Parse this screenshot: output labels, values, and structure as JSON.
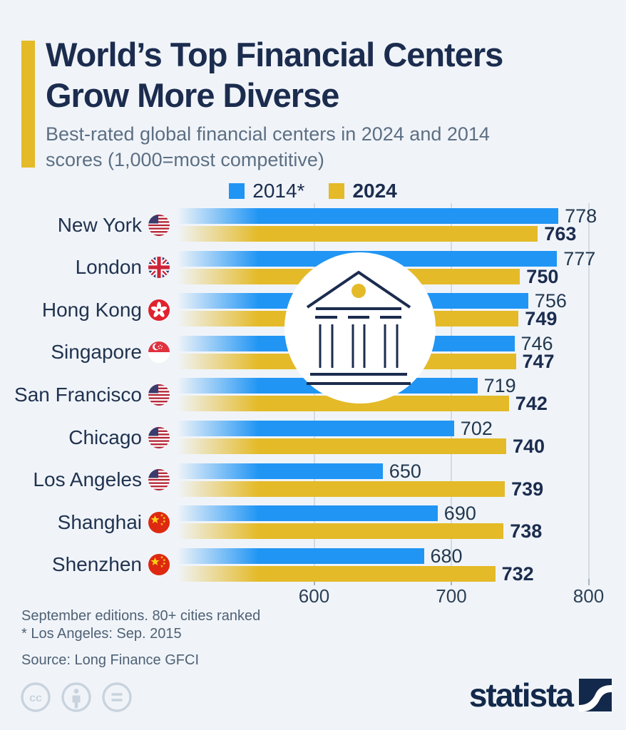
{
  "header": {
    "title_line1": "World’s Top Financial Centers",
    "title_line2": "Grow More Diverse",
    "subtitle_line1": "Best-rated global financial centers in 2024 and 2014",
    "subtitle_line2": "scores (1,000=most competitive)"
  },
  "legend": [
    {
      "label": "2014*",
      "color": "#2095f4",
      "bold": false
    },
    {
      "label": "2024",
      "color": "#e4ba28",
      "bold": true
    }
  ],
  "chart_data": {
    "type": "bar",
    "orientation": "horizontal",
    "title": "World’s Top Financial Centers Grow More Diverse",
    "subtitle": "Best-rated global financial centers in 2024 and 2014 scores (1,000=most competitive)",
    "categories": [
      "New York",
      "London",
      "Hong Kong",
      "Singapore",
      "San Francisco",
      "Chicago",
      "Los Angeles",
      "Shanghai",
      "Shenzhen"
    ],
    "flags": [
      "us",
      "gb",
      "hk",
      "sg",
      "us",
      "us",
      "us",
      "cn",
      "cn"
    ],
    "series": [
      {
        "name": "2014*",
        "color": "#2095f4",
        "values": [
          778,
          777,
          756,
          746,
          719,
          702,
          650,
          690,
          680
        ]
      },
      {
        "name": "2024",
        "color": "#e4ba28",
        "values": [
          763,
          750,
          749,
          747,
          742,
          740,
          739,
          738,
          732
        ]
      }
    ],
    "x_axis": {
      "ticks": [
        600,
        700,
        800
      ],
      "tick_labels": [
        "600",
        "700",
        "800"
      ],
      "min": 500,
      "max": 820
    },
    "grid": true,
    "legend_position": "top-center",
    "center_emblem": "bank-building"
  },
  "footnotes": {
    "line1": "September editions. 80+ cities ranked",
    "line2": "* Los Angeles: Sep. 2015",
    "source": "Source: Long Finance GFCI"
  },
  "footer": {
    "brand": "statista",
    "license_icons": [
      "cc",
      "attribution",
      "equal-sign"
    ]
  },
  "colors": {
    "background": "#f0f4f9",
    "title": "#1b2c4e",
    "subtitle": "#5d6f83",
    "accent_bar": "#e4ba28",
    "series_2014": "#2095f4",
    "series_2024": "#e4ba28",
    "gridline": "#d5dbe3",
    "footnote": "#4f6174",
    "brand_navy": "#13294b"
  }
}
